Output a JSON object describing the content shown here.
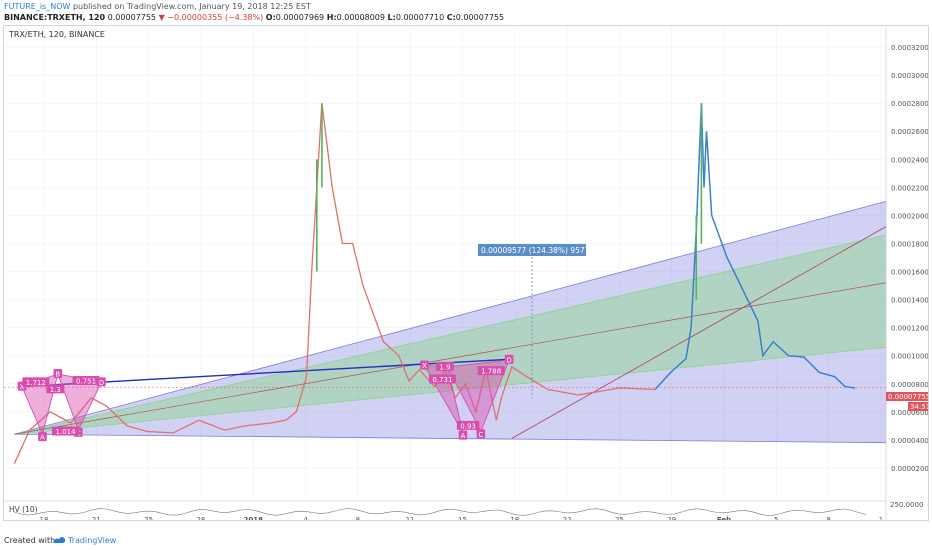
{
  "header": {
    "author": "FUTURE_is_NOW",
    "published": "published on TradingView.com, January 19, 2018 12:25 EST",
    "symbol": "BINANCE:TRXETH, 120",
    "last": "0.00007755",
    "change_arrow": "▼",
    "change": "−0.00000355 (−4.38%)",
    "o_label": "O:",
    "o": "0.00007969",
    "h_label": "H:",
    "h": "0.00008009",
    "l_label": "L:",
    "l": "0.00007710",
    "c_label": "C:",
    "c": "0.00007755"
  },
  "pane_title": "TRX/ETH, 120, BINANCE",
  "indicator_label": "HV (10)",
  "indicator_axis_label": "250.0000",
  "measure_label": "0.00009577 (124.38%) 9577",
  "footer": {
    "created": "Created with",
    "brand": "TradingView"
  },
  "colors": {
    "up": "#57b05a",
    "down": "#e0706b",
    "line": "#3b80c8",
    "pattern": "#d94db0",
    "fan_blue": "#7b7be0",
    "fan_green": "#8ad48a",
    "price_tag": "#e0555d"
  },
  "chart_data": {
    "type": "line",
    "title": "TRX/ETH, 120, BINANCE",
    "y_ticks": [
      "0.00032000",
      "0.00030000",
      "0.00028000",
      "0.00026000",
      "0.00024000",
      "0.00022000",
      "0.00020000",
      "0.00018000",
      "0.00016000",
      "0.00014000",
      "0.00012000",
      "0.00010000",
      "0.00008000",
      "0.00006000",
      "0.00004000",
      "0.00002000"
    ],
    "x_ticks": [
      "18",
      "21",
      "25",
      "28",
      "2018",
      "4",
      "8",
      "11",
      "15",
      "18",
      "22",
      "25",
      "29",
      "Feb",
      "5",
      "8",
      "1"
    ],
    "ylim": [
      0,
      0.000335
    ],
    "current_price": "0.00007755",
    "countdown": "34:51",
    "price_path": [
      [
        0,
        2.3e-05
      ],
      [
        3,
        4.7e-05
      ],
      [
        7,
        6e-05
      ],
      [
        11,
        5.2e-05
      ],
      [
        15,
        7e-05
      ],
      [
        18,
        6.4e-05
      ],
      [
        22,
        5e-05
      ],
      [
        26,
        4.6e-05
      ],
      [
        31,
        4.5e-05
      ],
      [
        36,
        5.4e-05
      ],
      [
        41,
        4.7e-05
      ],
      [
        45,
        5e-05
      ],
      [
        50,
        5.2e-05
      ],
      [
        53,
        5.4e-05
      ],
      [
        55,
        6e-05
      ],
      [
        57,
        8.5e-05
      ],
      [
        58,
        0.00016
      ],
      [
        59,
        0.00022
      ],
      [
        60,
        0.00028
      ],
      [
        61,
        0.00025
      ],
      [
        62,
        0.00022
      ],
      [
        64,
        0.00018
      ],
      [
        66,
        0.00018
      ],
      [
        68,
        0.00015
      ],
      [
        70,
        0.00013
      ],
      [
        72,
        0.00011
      ],
      [
        75,
        0.0001
      ],
      [
        77,
        8.2e-05
      ],
      [
        79,
        9e-05
      ],
      [
        82,
        7.8e-05
      ],
      [
        84,
        9e-05
      ],
      [
        86,
        7e-05
      ],
      [
        88,
        8e-05
      ],
      [
        90,
        6e-05
      ],
      [
        92,
        9e-05
      ],
      [
        94,
        5.4e-05
      ],
      [
        95,
        7e-05
      ],
      [
        97,
        9.2e-05
      ],
      [
        100,
        8.5e-05
      ],
      [
        104,
        7.6e-05
      ],
      [
        110,
        7.2e-05
      ],
      [
        118,
        7.7e-05
      ],
      [
        125,
        7.6e-05
      ],
      [
        128,
        8.8e-05
      ],
      [
        131,
        9.8e-05
      ],
      [
        132,
        0.00012
      ],
      [
        133,
        0.00019
      ],
      [
        134,
        0.00028
      ],
      [
        134.5,
        0.00022
      ],
      [
        135,
        0.00026
      ],
      [
        136,
        0.0002
      ],
      [
        137,
        0.00019
      ],
      [
        139,
        0.00017
      ],
      [
        141,
        0.000155
      ],
      [
        143,
        0.00014
      ],
      [
        145,
        0.000125
      ],
      [
        146,
        0.0001
      ],
      [
        148,
        0.00011
      ],
      [
        151,
        0.0001
      ],
      [
        154,
        9.9e-05
      ],
      [
        157,
        8.8e-05
      ],
      [
        160,
        8.5e-05
      ],
      [
        162,
        7.8e-05
      ],
      [
        164,
        7.7e-05
      ]
    ],
    "annotations": [
      {
        "text": "X",
        "x": 1.5,
        "y": 7.8e-05
      },
      {
        "text": "A",
        "x": 5.5,
        "y": 4.2e-05
      },
      {
        "text": "B",
        "x": 8.5,
        "y": 8.7e-05
      },
      {
        "text": "C",
        "x": 12.5,
        "y": 4.5e-05
      },
      {
        "text": "D",
        "x": 17,
        "y": 8.1e-05
      },
      {
        "text": "1.712",
        "x": 4.2,
        "y": 8.1e-05
      },
      {
        "text": "0.751",
        "x": 14,
        "y": 8.2e-05
      },
      {
        "text": "1.014",
        "x": 10,
        "y": 4.6e-05
      },
      {
        "text": "1.3",
        "x": 8,
        "y": 7.6e-05
      },
      {
        "text": "X",
        "x": 80,
        "y": 9.3e-05
      },
      {
        "text": "A",
        "x": 87.5,
        "y": 4.3e-05
      },
      {
        "text": "B",
        "x": 84.5,
        "y": 9.2e-05
      },
      {
        "text": "C",
        "x": 91,
        "y": 4.4e-05
      },
      {
        "text": "D",
        "x": 96.5,
        "y": 9.7e-05
      },
      {
        "text": "0.731",
        "x": 83.5,
        "y": 8.3e-05
      },
      {
        "text": "1.788",
        "x": 93,
        "y": 8.9e-05
      },
      {
        "text": "0.93",
        "x": 88.5,
        "y": 5e-05
      },
      {
        "text": "1.9",
        "x": 84,
        "y": 9.2e-05
      }
    ],
    "grid": true
  }
}
